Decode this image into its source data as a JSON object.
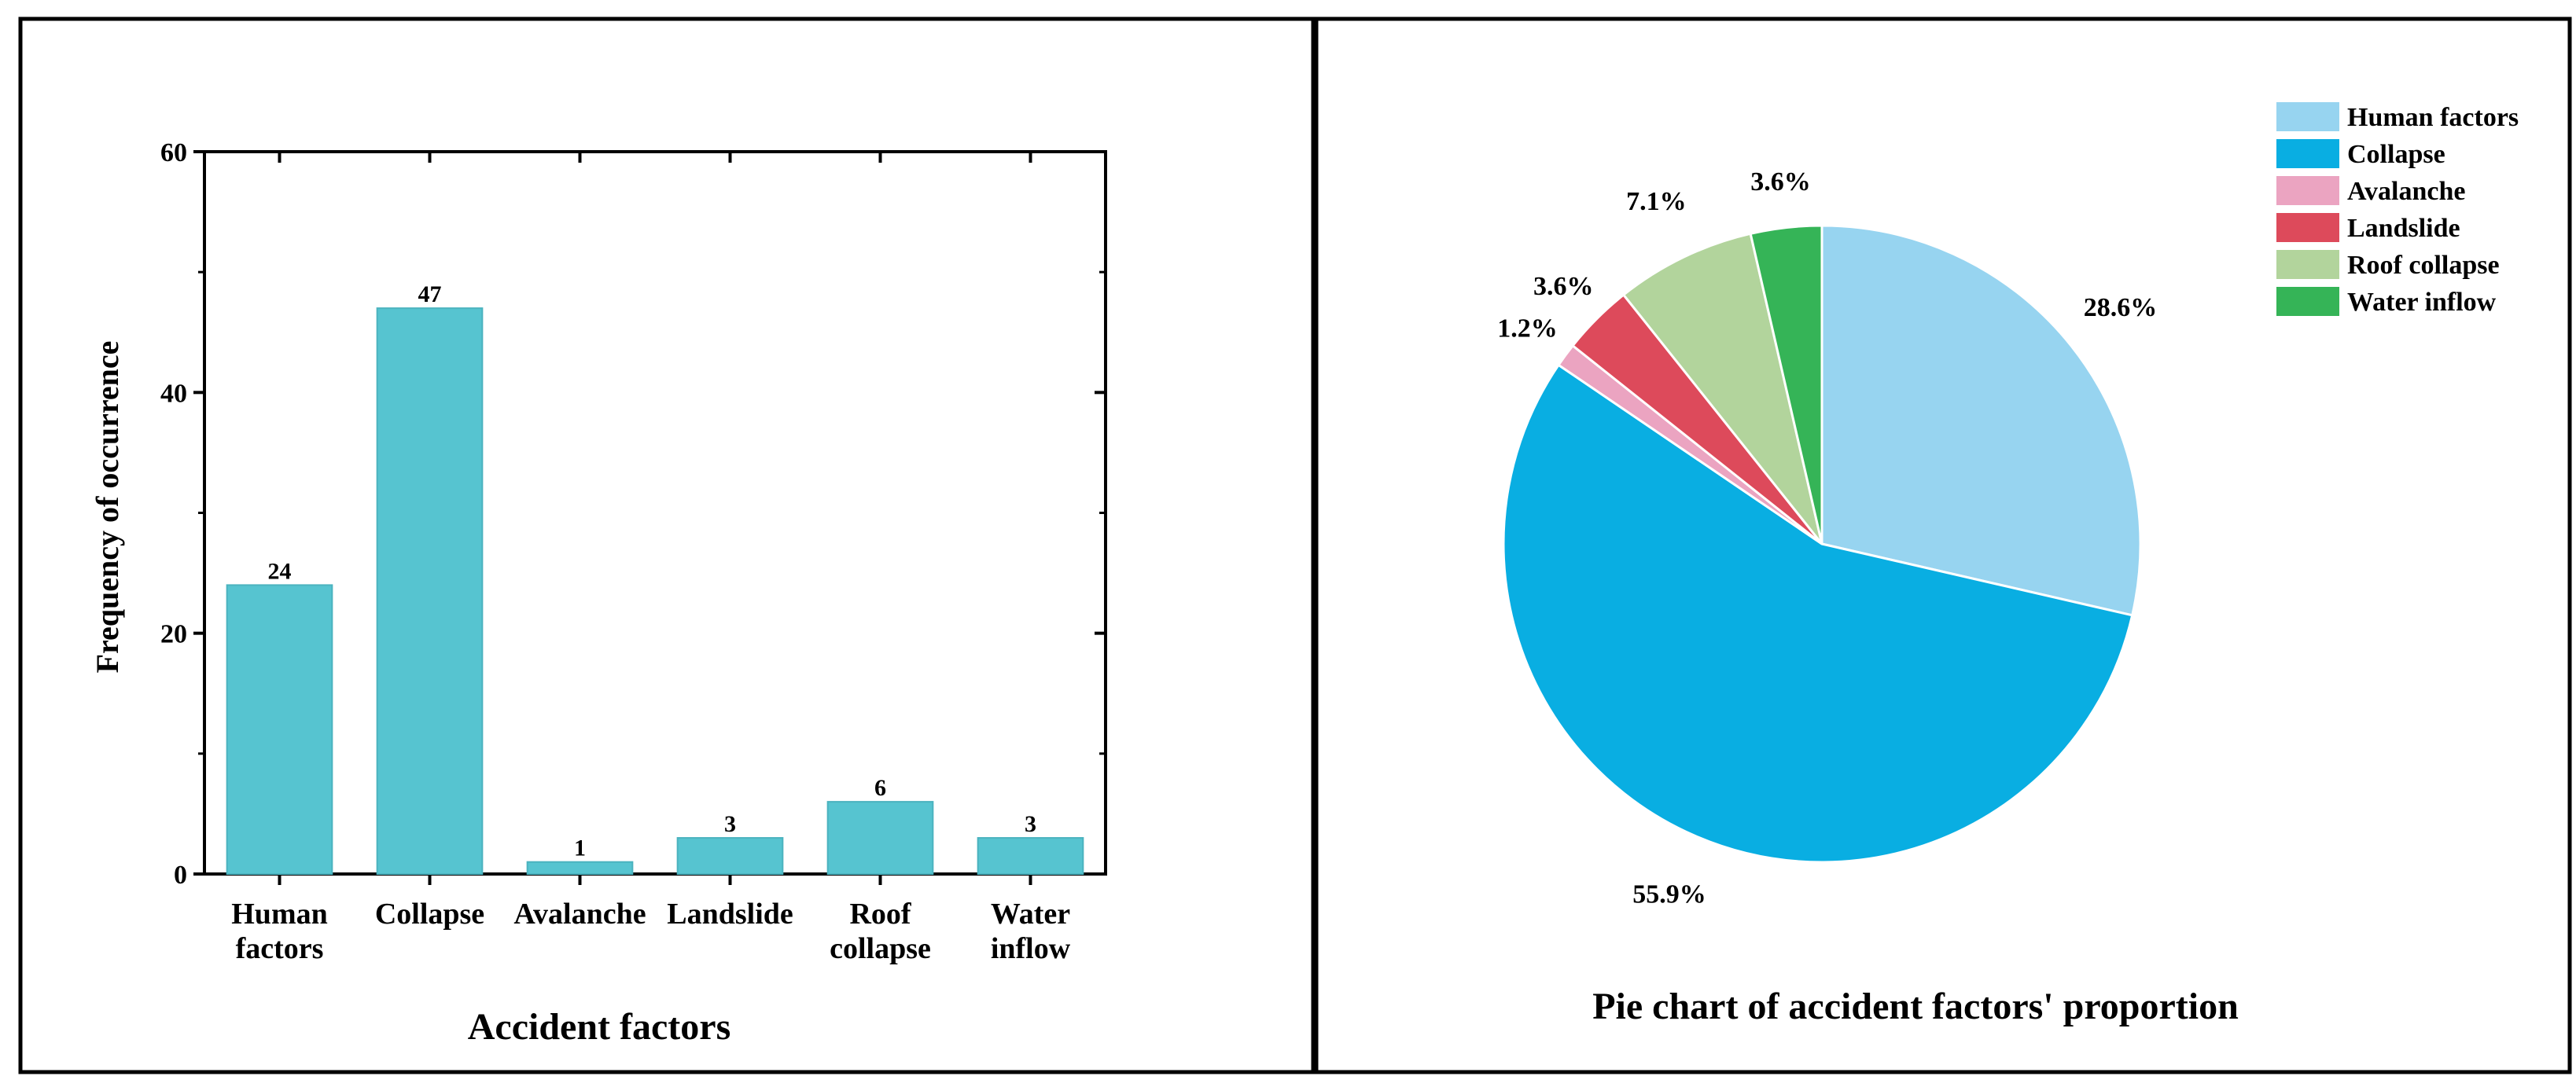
{
  "chart_data": [
    {
      "type": "bar",
      "title": "",
      "xlabel": "Accident factors",
      "ylabel": "Frequency of occurrence",
      "categories": [
        [
          "Human",
          "factors"
        ],
        [
          "Collapse"
        ],
        [
          "Avalanche"
        ],
        [
          "Landslide"
        ],
        [
          "Roof",
          "collapse"
        ],
        [
          "Water",
          "inflow"
        ]
      ],
      "values": [
        24,
        47,
        1,
        3,
        6,
        3
      ],
      "data_labels": [
        "24",
        "47",
        "1",
        "3",
        "6",
        "3"
      ],
      "ylim": [
        0,
        60
      ],
      "yticks": [
        0,
        20,
        40,
        60
      ],
      "ytick_labels": [
        "0",
        "20",
        "40",
        "60"
      ],
      "bar_color": "#56C4D0",
      "grid": false
    },
    {
      "type": "pie",
      "title": "Pie chart of accident factors' proportion",
      "legend_position": "top-right",
      "slices": [
        {
          "label": "Human factors",
          "value": 28.6,
          "display": "28.6%",
          "color": "#97D4F0"
        },
        {
          "label": "Collapse",
          "value": 55.9,
          "display": "55.9%",
          "color": "#09AEE2"
        },
        {
          "label": "Avalanche",
          "value": 1.2,
          "display": "1.2%",
          "color": "#EBA4C1"
        },
        {
          "label": "Landslide",
          "value": 3.6,
          "display": "3.6%",
          "color": "#DD4A5B"
        },
        {
          "label": "Roof collapse",
          "value": 7.1,
          "display": "7.1%",
          "color": "#B2D49C"
        },
        {
          "label": "Water inflow",
          "value": 3.6,
          "display": "3.6%",
          "color": "#35B457"
        }
      ]
    }
  ]
}
